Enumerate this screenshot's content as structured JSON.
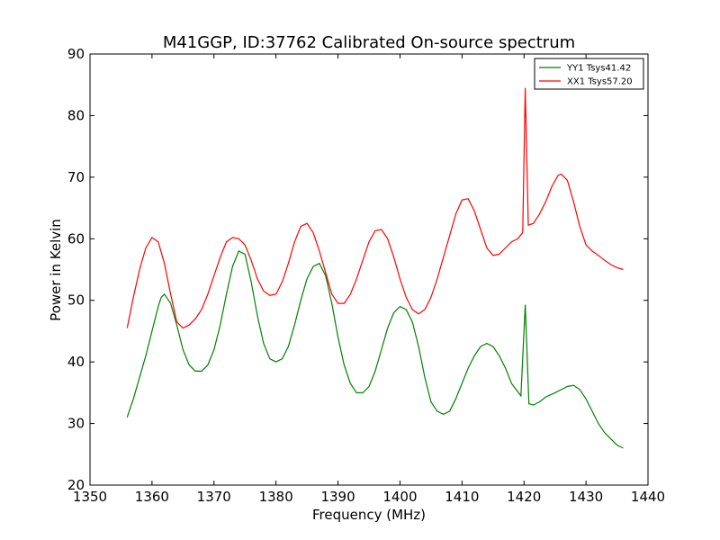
{
  "chart_data": {
    "type": "line",
    "title": "M41GGP, ID:37762 Calibrated On-source spectrum",
    "xlabel": "Frequency (MHz)",
    "ylabel": "Power in Kelvin",
    "xlim": [
      1350,
      1440
    ],
    "ylim": [
      20,
      90
    ],
    "xticks": [
      1350,
      1360,
      1370,
      1380,
      1390,
      1400,
      1410,
      1420,
      1430,
      1440
    ],
    "yticks": [
      20,
      30,
      40,
      50,
      60,
      70,
      80,
      90
    ],
    "grid": false,
    "legend_position": "top-right",
    "series": [
      {
        "name": "YY1 Tsys41.42",
        "color": "#008000",
        "points": [
          [
            1356,
            31
          ],
          [
            1357,
            34
          ],
          [
            1358,
            37.5
          ],
          [
            1359,
            41
          ],
          [
            1360,
            45
          ],
          [
            1361,
            49
          ],
          [
            1361.5,
            50.5
          ],
          [
            1362,
            51
          ],
          [
            1363,
            49.5
          ],
          [
            1364,
            46
          ],
          [
            1365,
            42
          ],
          [
            1366,
            39.5
          ],
          [
            1367,
            38.5
          ],
          [
            1368,
            38.5
          ],
          [
            1369,
            39.5
          ],
          [
            1370,
            42
          ],
          [
            1371,
            46
          ],
          [
            1372,
            51
          ],
          [
            1373,
            55.5
          ],
          [
            1374,
            58
          ],
          [
            1375,
            57.5
          ],
          [
            1376,
            53
          ],
          [
            1377,
            47.5
          ],
          [
            1378,
            43
          ],
          [
            1379,
            40.5
          ],
          [
            1380,
            40
          ],
          [
            1381,
            40.5
          ],
          [
            1382,
            42.5
          ],
          [
            1383,
            46
          ],
          [
            1384,
            50
          ],
          [
            1385,
            53.5
          ],
          [
            1386,
            55.5
          ],
          [
            1387,
            56
          ],
          [
            1388,
            54
          ],
          [
            1389,
            49.5
          ],
          [
            1390,
            44
          ],
          [
            1391,
            39.5
          ],
          [
            1392,
            36.5
          ],
          [
            1393,
            35
          ],
          [
            1394,
            35
          ],
          [
            1395,
            36
          ],
          [
            1396,
            38.5
          ],
          [
            1397,
            42
          ],
          [
            1398,
            45.5
          ],
          [
            1399,
            48
          ],
          [
            1400,
            49
          ],
          [
            1401,
            48.5
          ],
          [
            1402,
            46.5
          ],
          [
            1403,
            42.5
          ],
          [
            1404,
            37.5
          ],
          [
            1405,
            33.5
          ],
          [
            1406,
            32
          ],
          [
            1407,
            31.5
          ],
          [
            1408,
            32
          ],
          [
            1409,
            34
          ],
          [
            1410,
            36.5
          ],
          [
            1411,
            39
          ],
          [
            1412,
            41
          ],
          [
            1413,
            42.5
          ],
          [
            1414,
            43
          ],
          [
            1415,
            42.5
          ],
          [
            1416,
            41
          ],
          [
            1417,
            39
          ],
          [
            1418,
            36.5
          ],
          [
            1419.5,
            34.5
          ],
          [
            1420.2,
            49.3
          ],
          [
            1420.8,
            33.2
          ],
          [
            1421.5,
            33
          ],
          [
            1422.5,
            33.5
          ],
          [
            1423.5,
            34.3
          ],
          [
            1425,
            35
          ],
          [
            1426,
            35.5
          ],
          [
            1427,
            36
          ],
          [
            1428,
            36.2
          ],
          [
            1429,
            35.5
          ],
          [
            1430,
            34
          ],
          [
            1431,
            32
          ],
          [
            1432,
            30
          ],
          [
            1433,
            28.5
          ],
          [
            1434,
            27.5
          ],
          [
            1435,
            26.5
          ],
          [
            1436,
            26
          ]
        ]
      },
      {
        "name": "XX1 Tsys57.20",
        "color": "#ff0000",
        "points": [
          [
            1356,
            45.5
          ],
          [
            1357,
            50.5
          ],
          [
            1358,
            55
          ],
          [
            1359,
            58.5
          ],
          [
            1360,
            60.2
          ],
          [
            1361,
            59.5
          ],
          [
            1362,
            56
          ],
          [
            1363,
            51
          ],
          [
            1364,
            46.5
          ],
          [
            1365,
            45.5
          ],
          [
            1366,
            46
          ],
          [
            1367,
            47
          ],
          [
            1368,
            48.5
          ],
          [
            1369,
            51
          ],
          [
            1370,
            54
          ],
          [
            1371,
            57
          ],
          [
            1372,
            59.5
          ],
          [
            1373,
            60.2
          ],
          [
            1374,
            60
          ],
          [
            1375,
            59
          ],
          [
            1376,
            56.5
          ],
          [
            1377,
            53.5
          ],
          [
            1378,
            51.5
          ],
          [
            1379,
            50.8
          ],
          [
            1380,
            51
          ],
          [
            1381,
            53
          ],
          [
            1382,
            56
          ],
          [
            1383,
            59.5
          ],
          [
            1384,
            62
          ],
          [
            1385,
            62.5
          ],
          [
            1386,
            61
          ],
          [
            1387,
            58
          ],
          [
            1388,
            54.5
          ],
          [
            1389,
            51
          ],
          [
            1390,
            49.5
          ],
          [
            1391,
            49.5
          ],
          [
            1392,
            51
          ],
          [
            1393,
            53.5
          ],
          [
            1394,
            56.5
          ],
          [
            1395,
            59.5
          ],
          [
            1396,
            61.3
          ],
          [
            1397,
            61.5
          ],
          [
            1398,
            60
          ],
          [
            1399,
            57
          ],
          [
            1400,
            53.5
          ],
          [
            1401,
            50.5
          ],
          [
            1402,
            48.5
          ],
          [
            1403,
            47.8
          ],
          [
            1404,
            48.5
          ],
          [
            1405,
            50.5
          ],
          [
            1406,
            53.5
          ],
          [
            1407,
            57
          ],
          [
            1408,
            60.5
          ],
          [
            1409,
            64
          ],
          [
            1410,
            66.3
          ],
          [
            1411,
            66.5
          ],
          [
            1412,
            64.5
          ],
          [
            1413,
            61.5
          ],
          [
            1414,
            58.5
          ],
          [
            1415,
            57.3
          ],
          [
            1416,
            57.5
          ],
          [
            1417,
            58.5
          ],
          [
            1418,
            59.5
          ],
          [
            1419,
            60
          ],
          [
            1419.8,
            61
          ],
          [
            1420.2,
            84.5
          ],
          [
            1420.7,
            62.2
          ],
          [
            1421.5,
            62.5
          ],
          [
            1422.5,
            64
          ],
          [
            1423.5,
            66
          ],
          [
            1424.5,
            68.5
          ],
          [
            1425.5,
            70.3
          ],
          [
            1426,
            70.5
          ],
          [
            1427,
            69.5
          ],
          [
            1428,
            66
          ],
          [
            1429,
            62
          ],
          [
            1430,
            59
          ],
          [
            1431,
            58
          ],
          [
            1432,
            57.3
          ],
          [
            1433,
            56.5
          ],
          [
            1434,
            55.8
          ],
          [
            1435,
            55.3
          ],
          [
            1436,
            55
          ]
        ]
      }
    ]
  }
}
